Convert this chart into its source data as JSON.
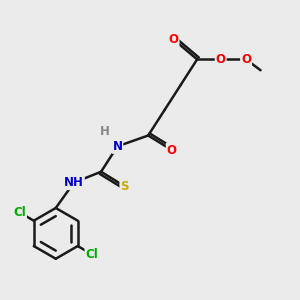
{
  "background_color": "#ebebeb",
  "atom_colors": {
    "C": "#000000",
    "O": "#ff0000",
    "N": "#0000cc",
    "S": "#ccaa00",
    "Cl": "#00aa00",
    "H": "#888888"
  },
  "bond_color": "#1a1a1a",
  "bond_width": 1.8,
  "font_size": 8.5,
  "figsize": [
    3.0,
    3.0
  ],
  "dpi": 100
}
